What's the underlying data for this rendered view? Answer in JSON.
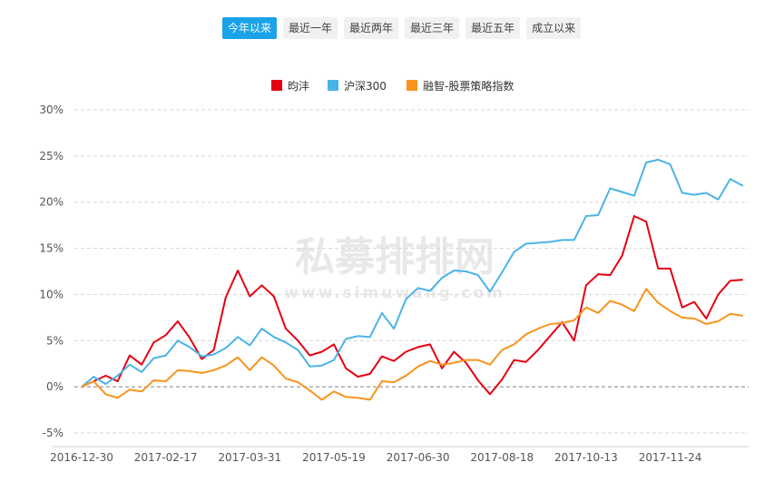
{
  "tabs": [
    {
      "label": "今年以来",
      "active": true
    },
    {
      "label": "最近一年",
      "active": false
    },
    {
      "label": "最近两年",
      "active": false
    },
    {
      "label": "最近三年",
      "active": false
    },
    {
      "label": "最近五年",
      "active": false
    },
    {
      "label": "成立以来",
      "active": false
    }
  ],
  "watermark": {
    "main": "私募排排网",
    "sub": "www.simuwang.com"
  },
  "chart_data": {
    "type": "line",
    "ylim": [
      -5,
      30
    ],
    "yticks": [
      -5,
      0,
      5,
      10,
      15,
      20,
      25,
      30
    ],
    "ytick_labels": [
      "-5%",
      "0%",
      "5%",
      "10%",
      "15%",
      "20%",
      "25%",
      "30%"
    ],
    "xtick_labels": [
      "2016-12-30",
      "2017-02-17",
      "2017-03-31",
      "2017-05-19",
      "2017-06-30",
      "2017-08-18",
      "2017-10-13",
      "2017-11-24"
    ],
    "xtick_index": [
      0,
      7,
      14,
      21,
      28,
      35,
      42,
      49
    ],
    "grid": true,
    "legend_position": "top-center",
    "series": [
      {
        "name": "昀沣",
        "color": "#e60012",
        "values": [
          0,
          0.6,
          1.2,
          0.6,
          3.4,
          2.4,
          4.8,
          5.6,
          7.1,
          5.3,
          3.0,
          4.0,
          9.7,
          12.6,
          9.8,
          11.0,
          9.8,
          6.3,
          5.0,
          3.4,
          3.8,
          4.6,
          2.0,
          1.1,
          1.4,
          3.3,
          2.8,
          3.8,
          4.3,
          4.6,
          2.0,
          3.8,
          2.6,
          0.7,
          -0.8,
          0.8,
          2.9,
          2.7,
          4.0,
          5.5,
          7.0,
          5.0,
          11.0,
          12.2,
          12.1,
          14.2,
          18.5,
          17.9,
          12.8,
          12.8,
          8.6,
          9.2,
          7.4,
          10.0,
          11.5,
          11.6
        ]
      },
      {
        "name": "沪深300",
        "color": "#4ab4e6",
        "values": [
          0,
          1.1,
          0.3,
          1.2,
          2.4,
          1.6,
          3.1,
          3.4,
          5.0,
          4.3,
          3.3,
          3.5,
          4.2,
          5.4,
          4.5,
          6.3,
          5.4,
          4.8,
          4.0,
          2.2,
          2.3,
          2.9,
          5.2,
          5.5,
          5.4,
          8.0,
          6.3,
          9.5,
          10.7,
          10.4,
          11.8,
          12.6,
          12.5,
          12.1,
          10.3,
          12.4,
          14.6,
          15.5,
          15.6,
          15.7,
          15.9,
          15.9,
          18.5,
          18.6,
          21.5,
          21.1,
          20.7,
          24.3,
          24.6,
          24.1,
          21.0,
          20.8,
          21.0,
          20.3,
          22.5,
          21.8
        ]
      },
      {
        "name": "融智-股票策略指数",
        "color": "#f7941d",
        "values": [
          0,
          0.6,
          -0.8,
          -1.2,
          -0.3,
          -0.5,
          0.7,
          0.6,
          1.8,
          1.7,
          1.5,
          1.8,
          2.3,
          3.2,
          1.8,
          3.2,
          2.3,
          0.9,
          0.5,
          -0.4,
          -1.4,
          -0.5,
          -1.1,
          -1.2,
          -1.4,
          0.6,
          0.5,
          1.2,
          2.2,
          2.8,
          2.4,
          2.6,
          2.9,
          2.9,
          2.4,
          4.0,
          4.6,
          5.7,
          6.3,
          6.8,
          6.9,
          7.2,
          8.6,
          8.0,
          9.3,
          8.9,
          8.2,
          10.6,
          9.1,
          8.2,
          7.5,
          7.4,
          6.8,
          7.1,
          7.9,
          7.7
        ]
      }
    ]
  }
}
